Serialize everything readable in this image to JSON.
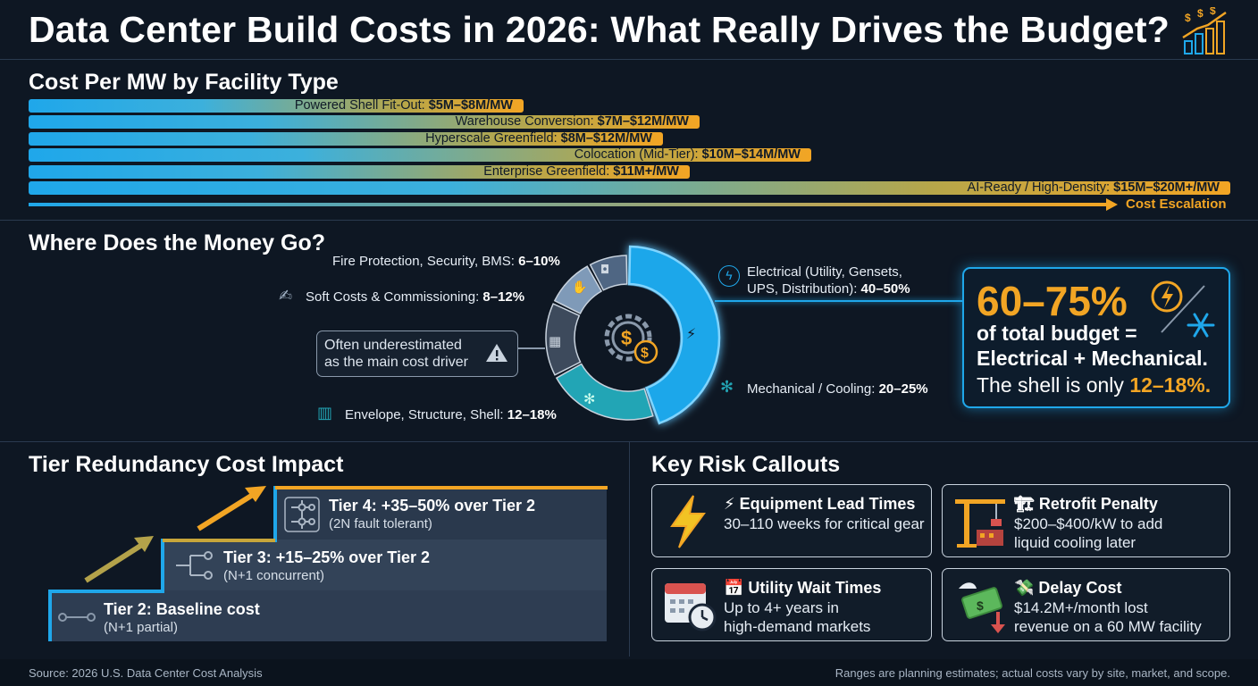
{
  "header": {
    "title": "Data Center Build Costs in 2026: What Really Drives the Budget?"
  },
  "sections": {
    "cost_per_mw": "Cost Per MW by Facility Type",
    "money": "Where Does the Money Go?",
    "tier": "Tier Redundancy Cost Impact",
    "risks": "Key Risk Callouts"
  },
  "chart_data": [
    {
      "type": "bar",
      "orientation": "horizontal",
      "title": "Cost Per MW by Facility Type",
      "unit": "$M per MW",
      "categories": [
        "Powered Shell Fit-Out",
        "Warehouse Conversion",
        "Hyperscale Greenfield",
        "Colocation (Mid-Tier)",
        "Enterprise Greenfield",
        "AI-Ready / High-Density"
      ],
      "series": [
        {
          "values": [
            [
              5,
              8
            ],
            [
              7,
              12
            ],
            [
              8,
              12
            ],
            [
              10,
              14
            ],
            [
              11,
              null
            ],
            [
              15,
              20
            ]
          ]
        }
      ],
      "labels": [
        {
          "name": "Powered Shell Fit-Out: ",
          "value": "$5M–$8M/MW"
        },
        {
          "name": "Warehouse Conversion: ",
          "value": "$7M–$12M/MW"
        },
        {
          "name": "Hyperscale Greenfield: ",
          "value": "$8M–$12M/MW"
        },
        {
          "name": "Colocation (Mid-Tier): ",
          "value": "$10M–$14M/MW"
        },
        {
          "name": "Enterprise Greenfield: ",
          "value": "$11M+/MW"
        },
        {
          "name": "AI-Ready / High-Density: ",
          "value": "$15M–$20M+/MW"
        }
      ],
      "escalation_label": "Cost Escalation"
    },
    {
      "type": "pie",
      "title": "Where Does the Money Go?",
      "slices": [
        {
          "name": "Electrical (Utility, Gensets, UPS, Distribution)",
          "label_line1": "Electrical (Utility, Gensets,",
          "label_line2": "UPS, Distribution): ",
          "range": "40–50%",
          "value": 45,
          "color": "#1fa7ea"
        },
        {
          "name": "Mechanical / Cooling",
          "label_line1": "Mechanical / Cooling: ",
          "range": "20–25%",
          "value": 22.5,
          "color": "#22a5b5"
        },
        {
          "name": "Envelope, Structure, Shell",
          "label_line1": "Envelope, Structure, Shell: ",
          "range": "12–18%",
          "value": 15,
          "color": "#3d4a5c"
        },
        {
          "name": "Soft Costs & Commissioning",
          "label_line1": "Soft Costs & Commissioning: ",
          "range": "8–12%",
          "value": 10,
          "color": "#7f9ab8"
        },
        {
          "name": "Fire Protection, Security, BMS",
          "label_line1": "Fire Protection, Security, BMS: ",
          "range": "6–10%",
          "value": 8,
          "color": "#4f6683"
        }
      ]
    }
  ],
  "donut": {
    "callout_l1": "Often underestimated",
    "callout_l2": "as the main cost driver"
  },
  "summary": {
    "pct": "60–75%",
    "l1": "of total budget =",
    "l2": "Electrical + Mechanical.",
    "l3a": "The shell is only ",
    "l3b": "12–18%."
  },
  "tiers": [
    {
      "title": "Tier 2: Baseline cost",
      "sub": "(N+1 partial)"
    },
    {
      "title": "Tier 3: +15–25% over Tier 2",
      "sub": "(N+1 concurrent)"
    },
    {
      "title": "Tier 4: +35–50% over Tier 2",
      "sub": "(2N fault tolerant)"
    }
  ],
  "risks": [
    {
      "title": "⚡ Equipment Lead Times",
      "l1": "30–110 weeks for critical gear",
      "l2": "",
      "icon": "lightning-icon"
    },
    {
      "title": "🏗 Retrofit Penalty",
      "l1": "$200–$400/kW to add",
      "l2": "liquid cooling later",
      "icon": "crane-icon"
    },
    {
      "title": "📅 Utility Wait Times",
      "l1": "Up to 4+ years in",
      "l2": "high-demand markets",
      "icon": "calendar-clock-icon"
    },
    {
      "title": "💸 Delay Cost",
      "l1": "$14.2M+/month lost",
      "l2": "revenue on a 60 MW facility",
      "icon": "money-wings-icon"
    }
  ],
  "footer": {
    "source": "Source: 2026 U.S. Data Center Cost Analysis",
    "note": "Ranges are planning estimates; actual costs vary by site, market, and scope."
  },
  "colors": {
    "accent_orange": "#f2a524",
    "accent_blue": "#1fa7ea",
    "teal": "#22a5b5",
    "background": "#0e1723"
  }
}
